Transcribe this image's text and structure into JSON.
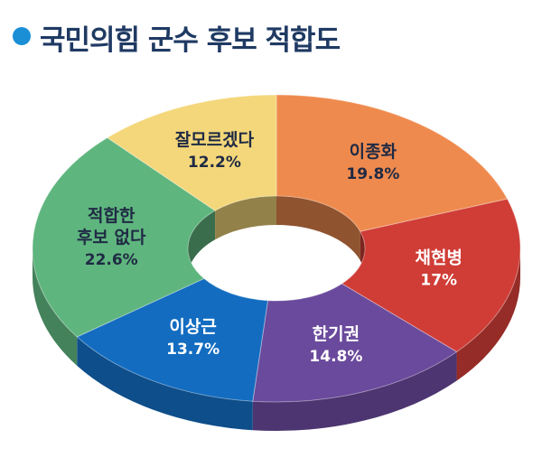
{
  "header": {
    "title": "국민의힘 군수 후보 적합도",
    "bullet_color": "#1a8fd6"
  },
  "chart_data": {
    "type": "pie",
    "title": "국민의힘 군수 후보 적합도",
    "unit": "%",
    "slices": [
      {
        "name": "이종화",
        "value": 19.8,
        "value_label": "19.8%",
        "color": "#ef8a4e",
        "label_color": "#1f2a44"
      },
      {
        "name": "채현병",
        "value": 17.0,
        "value_label": "17%",
        "color": "#cf3d36",
        "label_color": "#ffffff"
      },
      {
        "name": "한기권",
        "value": 14.8,
        "value_label": "14.8%",
        "color": "#6a4a9c",
        "label_color": "#ffffff"
      },
      {
        "name": "이상근",
        "value": 13.7,
        "value_label": "13.7%",
        "color": "#136cc0",
        "label_color": "#ffffff"
      },
      {
        "name": "적합한\n후보 없다",
        "value": 22.6,
        "value_label": "22.6%",
        "color": "#5fb57e",
        "label_color": "#1f2a44"
      },
      {
        "name": "잘모르겠다",
        "value": 12.2,
        "value_label": "12.2%",
        "color": "#f3d77a",
        "label_color": "#1f2a44"
      }
    ]
  }
}
